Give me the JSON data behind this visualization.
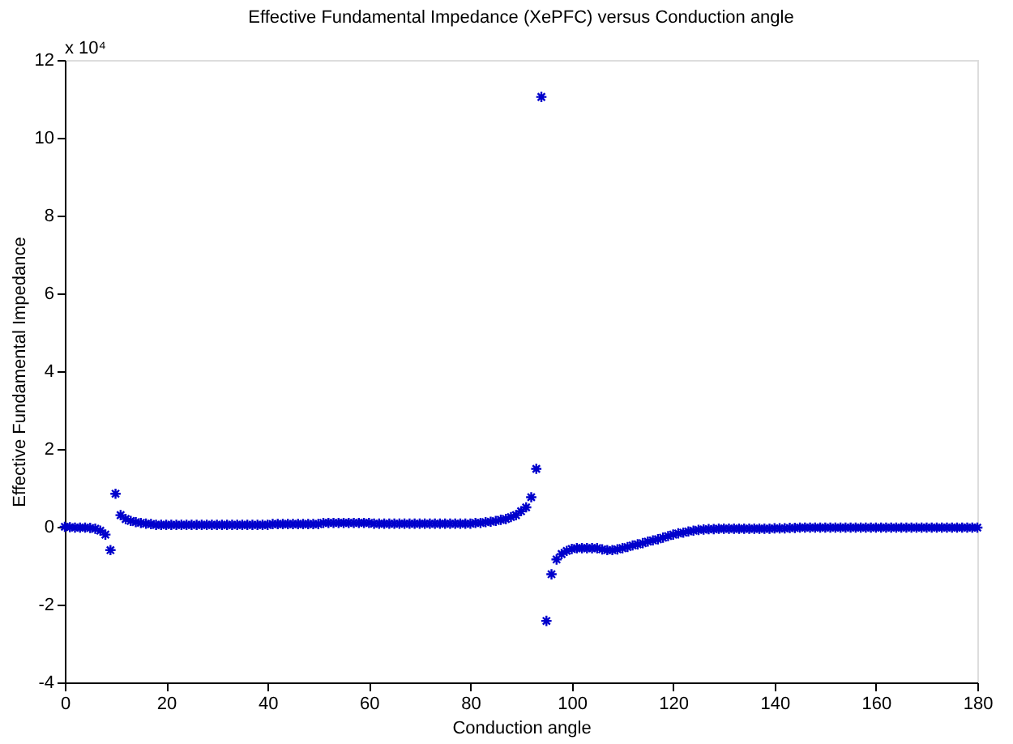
{
  "chart_data": {
    "type": "scatter",
    "title": "Effective Fundamental Impedance (XePFC) versus Conduction angle",
    "xlabel": "Conduction angle",
    "ylabel": "Effective Fundamental Impedance",
    "annotations": [
      "x 10⁴"
    ],
    "xlim": [
      0,
      180
    ],
    "xticks": [
      0,
      20,
      40,
      60,
      80,
      100,
      120,
      140,
      160,
      180
    ],
    "ylim": [
      -4,
      12
    ],
    "yticks": [
      -4,
      -2,
      0,
      2,
      4,
      6,
      8,
      10,
      12
    ],
    "grid": false,
    "marker": "cross",
    "legend": false,
    "x": [
      0,
      1,
      2,
      3,
      4,
      5,
      6,
      7,
      8,
      9,
      10,
      11,
      12,
      13,
      14,
      15,
      16,
      17,
      18,
      19,
      20,
      21,
      22,
      23,
      24,
      25,
      26,
      27,
      28,
      29,
      30,
      31,
      32,
      33,
      34,
      35,
      36,
      37,
      38,
      39,
      40,
      41,
      42,
      43,
      44,
      45,
      46,
      47,
      48,
      49,
      50,
      51,
      52,
      53,
      54,
      55,
      56,
      57,
      58,
      59,
      60,
      61,
      62,
      63,
      64,
      65,
      66,
      67,
      68,
      69,
      70,
      71,
      72,
      73,
      74,
      75,
      76,
      77,
      78,
      79,
      80,
      81,
      82,
      83,
      84,
      85,
      86,
      87,
      88,
      89,
      90,
      91,
      92,
      93,
      94,
      95,
      96,
      97,
      98,
      99,
      100,
      101,
      102,
      103,
      104,
      105,
      106,
      107,
      108,
      109,
      110,
      111,
      112,
      113,
      114,
      115,
      116,
      117,
      118,
      119,
      120,
      121,
      122,
      123,
      124,
      125,
      126,
      127,
      128,
      129,
      130,
      131,
      132,
      133,
      134,
      135,
      136,
      137,
      138,
      139,
      140,
      141,
      142,
      143,
      144,
      145,
      146,
      147,
      148,
      149,
      150,
      151,
      152,
      153,
      154,
      155,
      156,
      157,
      158,
      159,
      160,
      161,
      162,
      163,
      164,
      165,
      166,
      167,
      168,
      169,
      170,
      171,
      172,
      173,
      174,
      175,
      176,
      177,
      178,
      179,
      180
    ],
    "series": [
      {
        "color": "#0000cc",
        "values": [
          0,
          -0.01,
          -0.02,
          -0.02,
          -0.02,
          -0.03,
          -0.05,
          -0.1,
          -0.2,
          -0.6,
          0.85,
          0.3,
          0.2,
          0.15,
          0.12,
          0.1,
          0.08,
          0.07,
          0.05,
          0.05,
          0.05,
          0.05,
          0.05,
          0.05,
          0.05,
          0.05,
          0.05,
          0.05,
          0.05,
          0.05,
          0.05,
          0.05,
          0.05,
          0.05,
          0.05,
          0.05,
          0.05,
          0.05,
          0.05,
          0.05,
          0.05,
          0.07,
          0.07,
          0.07,
          0.07,
          0.07,
          0.07,
          0.07,
          0.07,
          0.07,
          0.07,
          0.1,
          0.1,
          0.1,
          0.1,
          0.1,
          0.1,
          0.1,
          0.1,
          0.1,
          0.1,
          0.08,
          0.08,
          0.08,
          0.08,
          0.08,
          0.08,
          0.08,
          0.08,
          0.08,
          0.08,
          0.08,
          0.08,
          0.08,
          0.08,
          0.08,
          0.08,
          0.08,
          0.08,
          0.08,
          0.08,
          0.1,
          0.1,
          0.12,
          0.13,
          0.15,
          0.18,
          0.2,
          0.25,
          0.3,
          0.4,
          0.5,
          0.76,
          1.49,
          11.05,
          -2.42,
          -1.22,
          -0.84,
          -0.7,
          -0.62,
          -0.57,
          -0.55,
          -0.55,
          -0.55,
          -0.55,
          -0.55,
          -0.58,
          -0.6,
          -0.6,
          -0.58,
          -0.55,
          -0.52,
          -0.48,
          -0.45,
          -0.42,
          -0.38,
          -0.35,
          -0.32,
          -0.28,
          -0.24,
          -0.2,
          -0.17,
          -0.15,
          -0.12,
          -0.1,
          -0.08,
          -0.07,
          -0.06,
          -0.06,
          -0.05,
          -0.05,
          -0.05,
          -0.05,
          -0.05,
          -0.05,
          -0.05,
          -0.05,
          -0.05,
          -0.05,
          -0.05,
          -0.04,
          -0.04,
          -0.04,
          -0.03,
          -0.03,
          -0.02,
          -0.02,
          -0.02,
          -0.02,
          -0.02,
          -0.02,
          -0.02,
          -0.02,
          -0.02,
          -0.02,
          -0.02,
          -0.02,
          -0.02,
          -0.02,
          -0.02,
          -0.02,
          -0.02,
          -0.02,
          -0.02,
          -0.02,
          -0.02,
          -0.02,
          -0.02,
          -0.02,
          -0.02,
          -0.02,
          -0.02,
          -0.02,
          -0.02,
          -0.02,
          -0.02,
          -0.02,
          -0.02,
          -0.02,
          -0.02,
          -0.02
        ]
      }
    ]
  }
}
